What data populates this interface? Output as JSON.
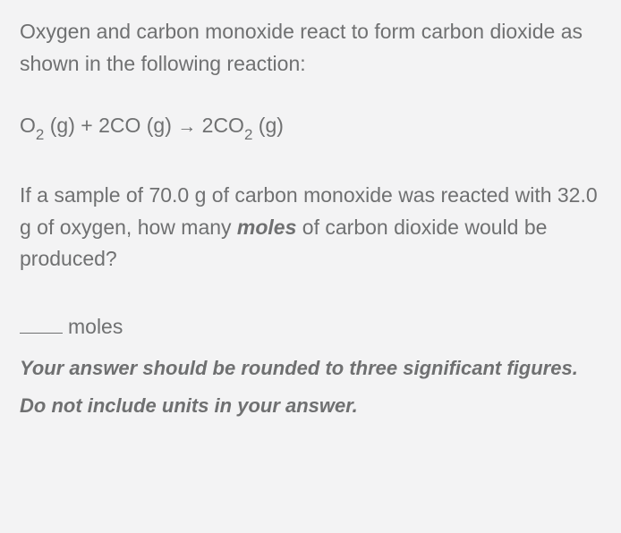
{
  "para1": "Oxygen and carbon monoxide react to form carbon dioxide as shown in the following reaction:",
  "equation": {
    "t1": "O",
    "s1": "2",
    "t2": " (g) + 2CO (g) ",
    "arrow": "→",
    "t3": " 2CO",
    "s2": "2",
    "t4": " (g)"
  },
  "para2": {
    "t1": "If a sample of 70.0 g of carbon monoxide was reacted with 32.0 g of oxygen, how many ",
    "bold": "moles",
    "t2": " of carbon dioxide would be produced?"
  },
  "answer_unit": "moles",
  "instruction": "Your answer should be rounded to three significant figures. Do not include units in your answer."
}
